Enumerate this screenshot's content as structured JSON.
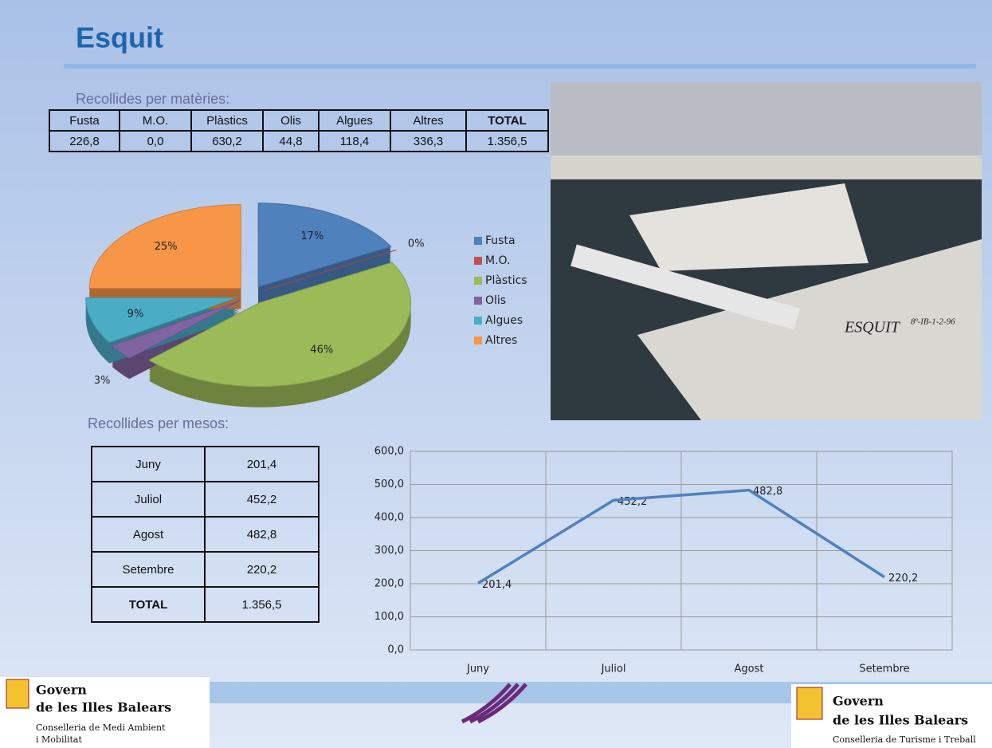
{
  "title": "Esquit",
  "materials": {
    "heading": "Recollides per matèries:",
    "header": [
      "Fusta",
      "M.O.",
      "Plàstics",
      "Olis",
      "Algues",
      "Altres",
      "TOTAL"
    ],
    "values": [
      "226,8",
      "0,0",
      "630,2",
      "44,8",
      "118,4",
      "336,3",
      "1.356,5"
    ]
  },
  "photo": {
    "boat_name": "ESQUIT",
    "registration": "8ª-IB-1-2-96"
  },
  "months": {
    "heading": "Recollides per mesos:",
    "rows": [
      [
        "Juny",
        "201,4"
      ],
      [
        "Juliol",
        "452,2"
      ],
      [
        "Agost",
        "482,8"
      ],
      [
        "Setembre",
        "220,2"
      ],
      [
        "TOTAL",
        "1.356,5"
      ]
    ]
  },
  "chart_data": [
    {
      "type": "pie",
      "categories": [
        "Fusta",
        "M.O.",
        "Plàstics",
        "Olis",
        "Algues",
        "Altres"
      ],
      "values": [
        17,
        0,
        46,
        3,
        9,
        25
      ],
      "value_labels": [
        "17%",
        "0%",
        "46%",
        "3%",
        "9%",
        "25%"
      ],
      "colors": [
        "#4f81bd",
        "#c0504d",
        "#9bbb59",
        "#8064a2",
        "#4bacc6",
        "#f79646"
      ],
      "legend": "right"
    },
    {
      "type": "line",
      "categories": [
        "Juny",
        "Juliol",
        "Agost",
        "Setembre"
      ],
      "values": [
        201.4,
        452.2,
        482.8,
        220.2
      ],
      "value_labels": [
        "201,4",
        "452,2",
        "482,8",
        "220,2"
      ],
      "color": "#4f81bd",
      "ylim": [
        0,
        600
      ],
      "yticks": [
        {
          "value": 0,
          "label": "0,0"
        },
        {
          "value": 100,
          "label": "100,0"
        },
        {
          "value": 200,
          "label": "200,0"
        },
        {
          "value": 300,
          "label": "300,0"
        },
        {
          "value": 400,
          "label": "400,0"
        },
        {
          "value": 500,
          "label": "500,0"
        },
        {
          "value": 600,
          "label": "600,0"
        }
      ],
      "grid": true
    }
  ],
  "footer": {
    "left": {
      "line1": "Govern",
      "line2": "de les Illes Balears",
      "dept1": "Conselleria de Medi Ambient",
      "dept2": "i Mobilitat"
    },
    "right": {
      "line1": "Govern",
      "line2": "de les Illes Balears",
      "dept1": "Conselleria de Turisme i Treball"
    }
  }
}
